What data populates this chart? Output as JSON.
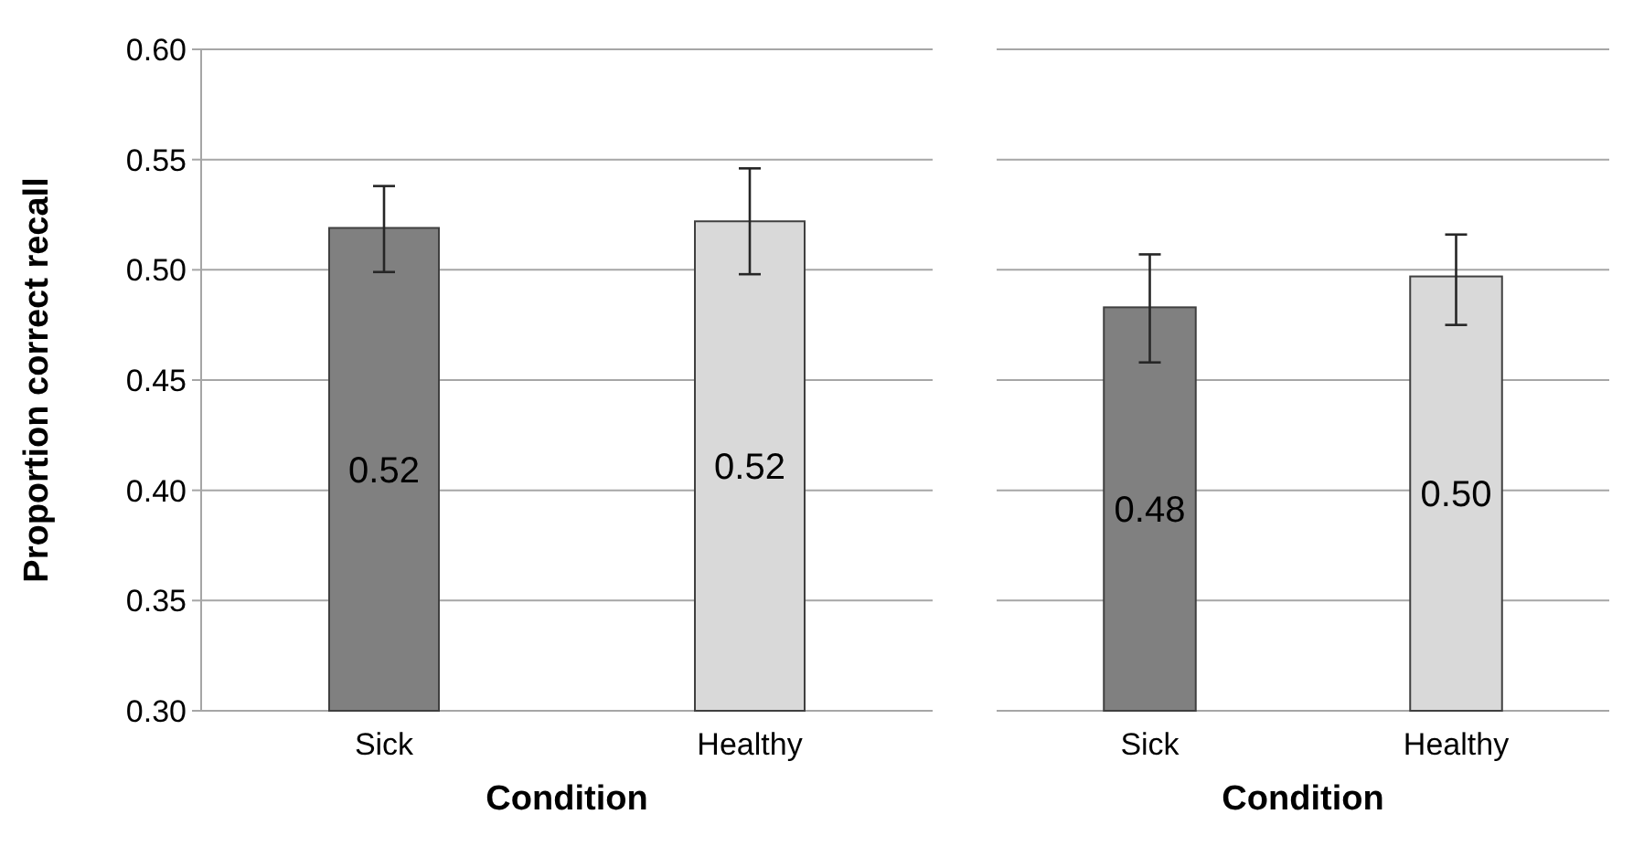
{
  "chart_data": [
    {
      "type": "bar",
      "xlabel": "Condition",
      "ylabel": "Proportion correct recall",
      "categories": [
        "Sick",
        "Healthy"
      ],
      "values": [
        0.519,
        0.522
      ],
      "colors": [
        "#808080",
        "#d9d9d9"
      ],
      "errors": [
        [
          0.499,
          0.538
        ],
        [
          0.498,
          0.546
        ]
      ],
      "value_labels": [
        "0.52",
        "0.52"
      ],
      "ylim": [
        0.3,
        0.6
      ],
      "yticks": [
        {
          "value": 0.3,
          "label": "0.30"
        },
        {
          "value": 0.35,
          "label": "0.35"
        },
        {
          "value": 0.4,
          "label": "0.40"
        },
        {
          "value": 0.45,
          "label": "0.45"
        },
        {
          "value": 0.5,
          "label": "0.50"
        },
        {
          "value": 0.55,
          "label": "0.55"
        },
        {
          "value": 0.6,
          "label": "0.60"
        }
      ],
      "grid": "y"
    },
    {
      "type": "bar",
      "xlabel": "Condition",
      "categories": [
        "Sick",
        "Healthy"
      ],
      "values": [
        0.483,
        0.497
      ],
      "colors": [
        "#808080",
        "#d9d9d9"
      ],
      "errors": [
        [
          0.458,
          0.507
        ],
        [
          0.475,
          0.516
        ]
      ],
      "value_labels": [
        "0.48",
        "0.50"
      ],
      "ylim": [
        0.3,
        0.6
      ],
      "yticks": [
        {
          "value": 0.3,
          "label": null
        },
        {
          "value": 0.35,
          "label": null
        },
        {
          "value": 0.4,
          "label": null
        },
        {
          "value": 0.45,
          "label": null
        },
        {
          "value": 0.5,
          "label": null
        },
        {
          "value": 0.55,
          "label": null
        },
        {
          "value": 0.6,
          "label": null
        }
      ],
      "grid": "y",
      "tick_labels": "x"
    }
  ]
}
